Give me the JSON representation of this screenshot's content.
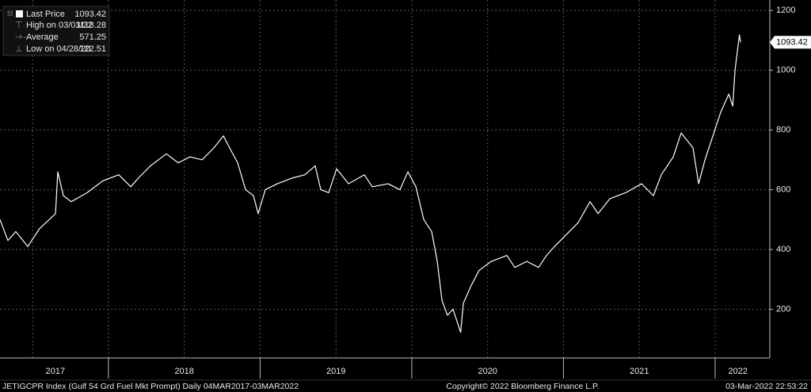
{
  "chart_data": {
    "type": "line",
    "legend": {
      "rows": [
        {
          "label": "Last Price",
          "value": "1093.42"
        },
        {
          "label": "High on 03/03/22",
          "value": "1118.28"
        },
        {
          "label": "Average",
          "value": "571.25"
        },
        {
          "label": "Low on 04/28/20",
          "value": "122.51"
        }
      ]
    },
    "footer": {
      "left": "JETIGCPR Index (Gulf 54 Grd Fuel Mkt Prompt)  Daily 04MAR2017-03MAR2022",
      "center": "Copyright© 2022 Bloomberg Finance L.P.",
      "right": "03-Mar-2022 22:53:22"
    },
    "series": [
      {
        "name": "Last Price",
        "color": "#ffffff",
        "x": [
          2017.285,
          2017.337,
          2017.389,
          2017.468,
          2017.546,
          2017.651,
          2017.666,
          2017.703,
          2017.755,
          2017.859,
          2017.964,
          2018.068,
          2018.147,
          2018.199,
          2018.277,
          2018.382,
          2018.46,
          2018.538,
          2018.617,
          2018.695,
          2018.758,
          2018.799,
          2018.852,
          2018.904,
          2018.956,
          2018.987,
          2019.034,
          2019.113,
          2019.217,
          2019.295,
          2019.363,
          2019.4,
          2019.452,
          2019.504,
          2019.583,
          2019.687,
          2019.739,
          2019.844,
          2019.922,
          2019.974,
          2020.027,
          2020.079,
          2020.131,
          2020.168,
          2020.199,
          2020.235,
          2020.272,
          2020.322,
          2020.34,
          2020.392,
          2020.444,
          2020.523,
          2020.627,
          2020.679,
          2020.758,
          2020.836,
          2020.888,
          2020.941,
          2021.019,
          2021.097,
          2021.175,
          2021.228,
          2021.306,
          2021.41,
          2021.515,
          2021.593,
          2021.645,
          2021.724,
          2021.776,
          2021.854,
          2021.891,
          2021.933,
          2021.985,
          2022.037,
          2022.09,
          2022.116,
          2022.131,
          2022.16,
          2022.168
        ],
        "values": [
          500,
          430,
          460,
          410,
          470,
          520,
          660,
          580,
          560,
          590,
          630,
          650,
          610,
          640,
          680,
          720,
          690,
          710,
          700,
          740,
          780,
          740,
          690,
          600,
          580,
          520,
          600,
          620,
          640,
          650,
          680,
          600,
          590,
          670,
          620,
          650,
          610,
          620,
          600,
          660,
          610,
          500,
          460,
          360,
          230,
          180,
          200,
          122.51,
          220,
          280,
          330,
          360,
          380,
          340,
          360,
          340,
          380,
          410,
          450,
          490,
          560,
          520,
          570,
          590,
          620,
          580,
          650,
          710,
          790,
          740,
          620,
          700,
          780,
          860,
          920,
          880,
          1000,
          1118.28,
          1093.42
        ]
      }
    ],
    "xlim": [
      2017.285,
      2022.35
    ],
    "xticks": [
      {
        "value": 2017.65,
        "label": "2017"
      },
      {
        "value": 2018.5,
        "label": "2018"
      },
      {
        "value": 2019.5,
        "label": "2019"
      },
      {
        "value": 2020.5,
        "label": "2020"
      },
      {
        "value": 2021.5,
        "label": "2021"
      },
      {
        "value": 2022.15,
        "label": "2022"
      }
    ],
    "xgrid": [
      2017.5,
      2018,
      2018.5,
      2019,
      2019.5,
      2020,
      2020.5,
      2021,
      2021.5,
      2022
    ],
    "ylim": [
      37,
      1235
    ],
    "yticks": [
      200,
      400,
      600,
      800,
      1000,
      1200
    ],
    "grid": true
  }
}
